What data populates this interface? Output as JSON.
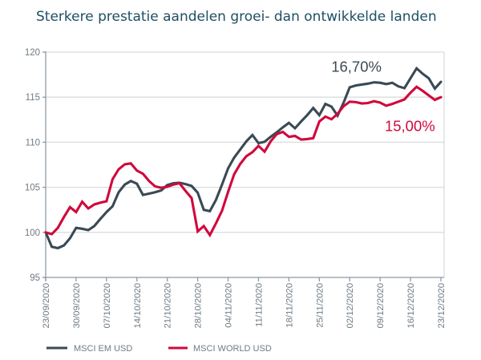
{
  "chart_data": {
    "type": "line",
    "title": "Sterkere prestatie aandelen groei- dan ontwikkelde landen",
    "title_color": "#1e4f63",
    "x_tick_labels": [
      "23/09/2020",
      "30/09/2020",
      "07/10/2020",
      "14/10/2020",
      "21/10/2020",
      "28/10/2020",
      "04/11/2020",
      "11/11/2020",
      "18/11/2020",
      "25/11/2020",
      "02/12/2020",
      "09/12/2020",
      "16/12/2020",
      "23/12/2020"
    ],
    "y_tick_labels": [
      "95",
      "100",
      "105",
      "110",
      "115",
      "120"
    ],
    "ylim": [
      95,
      120
    ],
    "points_per_tick": 5,
    "grid": "horizontal",
    "legend_position": "bottom-left",
    "axis_color": "#8c9aa3",
    "grid_color": "#d9dcde",
    "tick_label_color": "#6e7b85",
    "series": [
      {
        "name": "MSCI EM USD",
        "color": "#394a55",
        "values": [
          100.0,
          98.4,
          98.25,
          98.55,
          99.35,
          100.5,
          100.4,
          100.25,
          100.7,
          101.5,
          102.25,
          102.9,
          104.45,
          105.3,
          105.7,
          105.4,
          104.15,
          104.3,
          104.45,
          104.65,
          105.25,
          105.45,
          105.5,
          105.35,
          105.15,
          104.4,
          102.5,
          102.35,
          103.6,
          105.3,
          107.1,
          108.3,
          109.2,
          110.1,
          110.8,
          109.9,
          110.05,
          110.6,
          111.1,
          111.65,
          112.15,
          111.55,
          112.3,
          113.0,
          113.8,
          113.0,
          114.25,
          113.95,
          112.95,
          114.4,
          116.1,
          116.3,
          116.4,
          116.5,
          116.65,
          116.6,
          116.45,
          116.6,
          116.2,
          116.0,
          117.1,
          118.2,
          117.6,
          117.1,
          115.95,
          116.7
        ]
      },
      {
        "name": "MSCI WORLD USD",
        "color": "#d0093c",
        "values": [
          100.0,
          99.8,
          100.5,
          101.7,
          102.8,
          102.25,
          103.4,
          102.65,
          103.1,
          103.3,
          103.45,
          105.9,
          107.0,
          107.55,
          107.65,
          106.85,
          106.5,
          105.7,
          105.1,
          104.95,
          105.05,
          105.3,
          105.45,
          104.6,
          103.8,
          100.1,
          100.7,
          99.7,
          101.0,
          102.4,
          104.5,
          106.45,
          107.6,
          108.45,
          108.9,
          109.6,
          108.95,
          110.1,
          110.9,
          111.15,
          110.6,
          110.7,
          110.3,
          110.35,
          110.45,
          112.3,
          112.85,
          112.55,
          113.15,
          114.0,
          114.5,
          114.45,
          114.3,
          114.35,
          114.55,
          114.4,
          114.05,
          114.25,
          114.5,
          114.75,
          115.5,
          116.15,
          115.7,
          115.2,
          114.7,
          115.0
        ]
      }
    ],
    "annotations": [
      {
        "text": "16,70%",
        "color": "#394a55",
        "x_day": 51.1,
        "y_value": 118.35
      },
      {
        "text": "15,00%",
        "color": "#d0093c",
        "x_day": 59.9,
        "y_value": 111.75
      }
    ],
    "legend": [
      {
        "label": "MSCI EM USD",
        "color": "#394a55"
      },
      {
        "label": "MSCI WORLD USD",
        "color": "#d0093c"
      }
    ]
  }
}
